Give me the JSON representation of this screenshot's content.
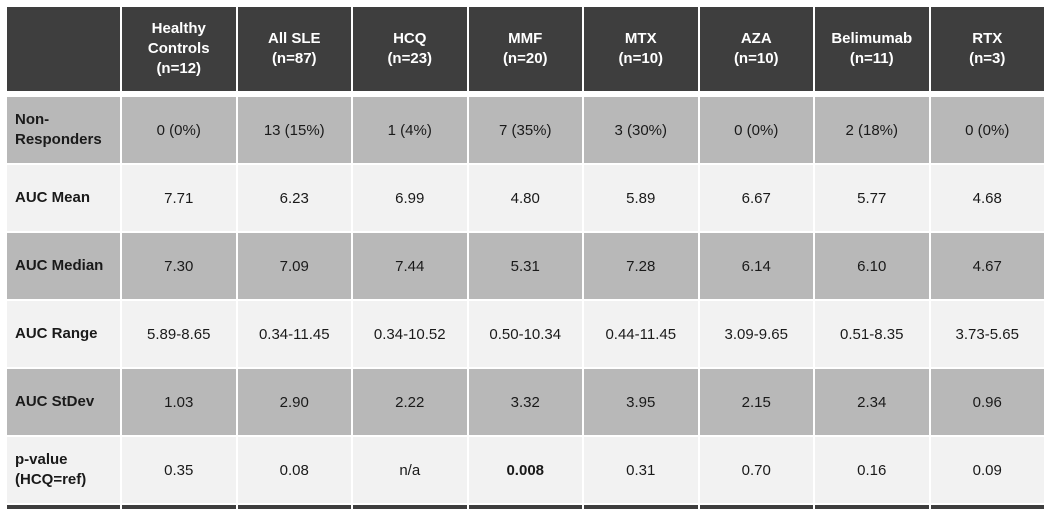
{
  "colors": {
    "header_bg": "#3e3e3e",
    "header_text": "#ffffff",
    "band_dark": "#b8b8b8",
    "band_light": "#f2f2f2",
    "body_text": "#1a1a1a"
  },
  "table": {
    "header": {
      "corner": "",
      "columns": [
        {
          "label": "Healthy Controls",
          "n": "(n=12)"
        },
        {
          "label": "All SLE",
          "n": "(n=87)"
        },
        {
          "label": "HCQ",
          "n": "(n=23)"
        },
        {
          "label": "MMF",
          "n": "(n=20)"
        },
        {
          "label": "MTX",
          "n": "(n=10)"
        },
        {
          "label": "AZA",
          "n": "(n=10)"
        },
        {
          "label": "Belimumab",
          "n": "(n=11)"
        },
        {
          "label": "RTX",
          "n": "(n=3)"
        }
      ]
    },
    "rows": [
      {
        "label": "Non-Responders",
        "values": [
          "0 (0%)",
          "13 (15%)",
          "1 (4%)",
          "7 (35%)",
          "3 (30%)",
          "0 (0%)",
          "2 (18%)",
          "0 (0%)"
        ]
      },
      {
        "label": "AUC Mean",
        "values": [
          "7.71",
          "6.23",
          "6.99",
          "4.80",
          "5.89",
          "6.67",
          "5.77",
          "4.68"
        ]
      },
      {
        "label": "AUC Median",
        "values": [
          "7.30",
          "7.09",
          "7.44",
          "5.31",
          "7.28",
          "6.14",
          "6.10",
          "4.67"
        ]
      },
      {
        "label": "AUC Range",
        "values": [
          "5.89-8.65",
          "0.34-11.45",
          "0.34-10.52",
          "0.50-10.34",
          "0.44-11.45",
          "3.09-9.65",
          "0.51-8.35",
          "3.73-5.65"
        ]
      },
      {
        "label": "AUC StDev",
        "values": [
          "1.03",
          "2.90",
          "2.22",
          "3.32",
          "3.95",
          "2.15",
          "2.34",
          "0.96"
        ]
      },
      {
        "label": "p-value (HCQ=ref)",
        "values": [
          "0.35",
          "0.08",
          "n/a",
          "0.008",
          "0.31",
          "0.70",
          "0.16",
          "0.09"
        ]
      }
    ]
  },
  "chart_data": {
    "type": "table",
    "title": "AUC responder statistics by treatment group",
    "columns": [
      "Healthy Controls (n=12)",
      "All SLE (n=87)",
      "HCQ (n=23)",
      "MMF (n=20)",
      "MTX (n=10)",
      "AZA (n=10)",
      "Belimumab (n=11)",
      "RTX (n=3)"
    ],
    "row_labels": [
      "Non-Responders",
      "AUC Mean",
      "AUC Median",
      "AUC Range",
      "AUC StDev",
      "p-value (HCQ=ref)"
    ],
    "cells": [
      [
        "0 (0%)",
        "13 (15%)",
        "1 (4%)",
        "7 (35%)",
        "3 (30%)",
        "0 (0%)",
        "2 (18%)",
        "0 (0%)"
      ],
      [
        "7.71",
        "6.23",
        "6.99",
        "4.80",
        "5.89",
        "6.67",
        "5.77",
        "4.68"
      ],
      [
        "7.30",
        "7.09",
        "7.44",
        "5.31",
        "7.28",
        "6.14",
        "6.10",
        "4.67"
      ],
      [
        "5.89-8.65",
        "0.34-11.45",
        "0.34-10.52",
        "0.50-10.34",
        "0.44-11.45",
        "3.09-9.65",
        "0.51-8.35",
        "3.73-5.65"
      ],
      [
        "1.03",
        "2.90",
        "2.22",
        "3.32",
        "3.95",
        "2.15",
        "2.34",
        "0.96"
      ],
      [
        "0.35",
        "0.08",
        "n/a",
        "0.008",
        "0.31",
        "0.70",
        "0.16",
        "0.09"
      ]
    ],
    "emphasized_cell": {
      "row": "p-value (HCQ=ref)",
      "column": "MMF (n=20)",
      "value": "0.008"
    }
  }
}
